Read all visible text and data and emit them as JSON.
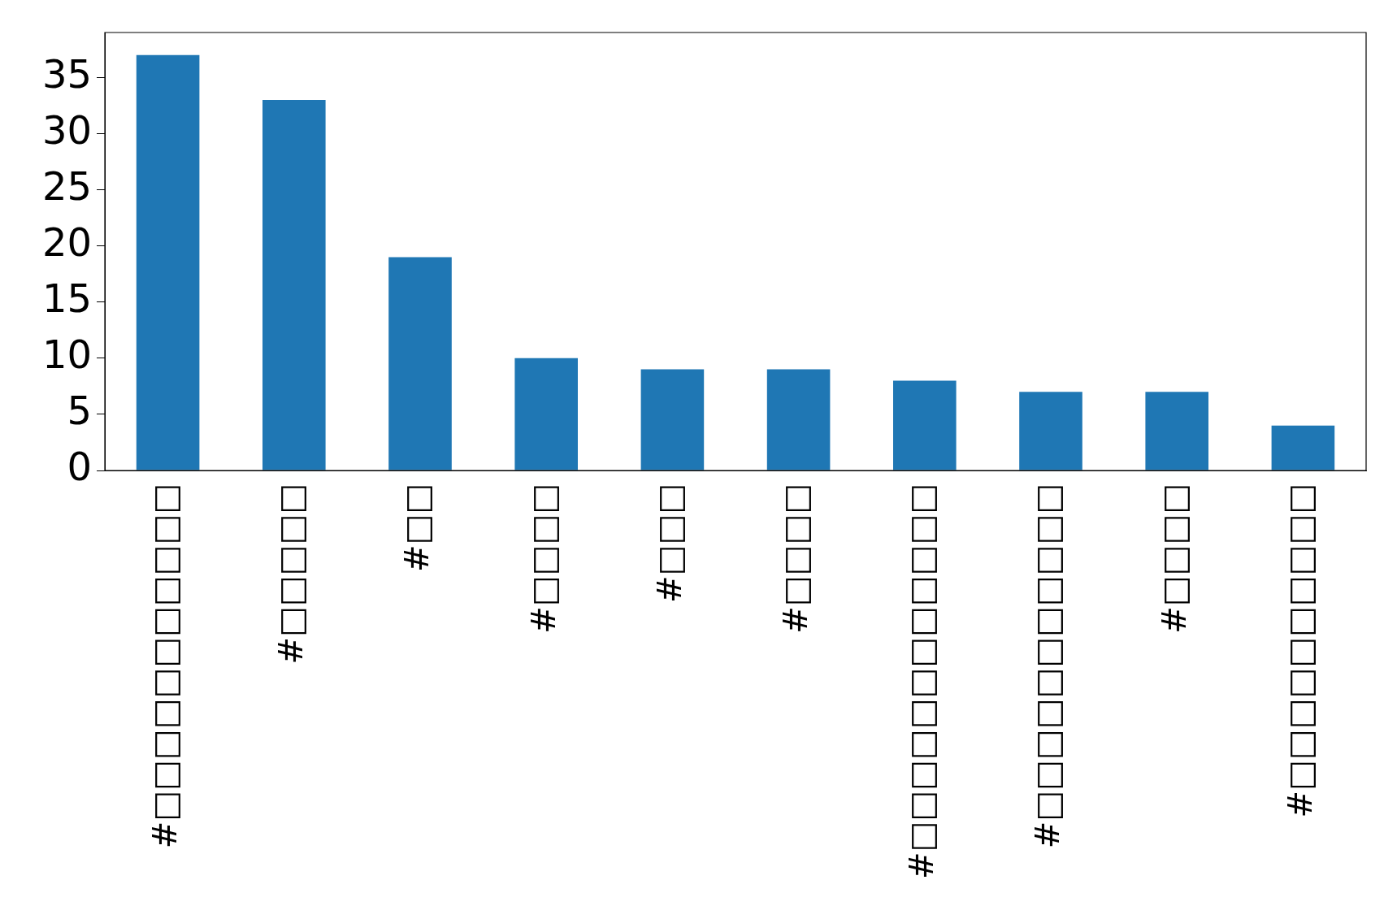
{
  "chart_data": {
    "type": "bar",
    "categories": [
      "#□□□□□□□□□□□",
      "#□□□□□",
      "#□□",
      "#□□□□",
      "#□□□",
      "#□□□□",
      "#□□□□□□□□□□□□",
      "#□□□□□□□□□□□",
      "#□□□□",
      "#□□□□□□□□□□"
    ],
    "values": [
      37,
      33,
      19,
      10,
      9,
      9,
      8,
      7,
      7,
      4
    ],
    "color": "#1f77b4",
    "ylim": [
      0,
      39
    ],
    "yticks": [
      0,
      5,
      10,
      15,
      20,
      25,
      30,
      35
    ],
    "grid": false,
    "legend": false
  }
}
